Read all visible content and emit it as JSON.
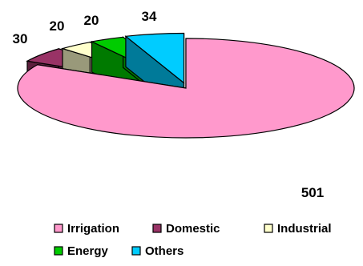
{
  "chart_data": {
    "type": "pie",
    "style": "3d-exploded",
    "legend_position": "bottom",
    "slices": [
      {
        "name": "Irrigation",
        "value": 501,
        "label": "501",
        "color": "#ff99cc",
        "side_color": "#996680"
      },
      {
        "name": "Domestic",
        "value": 30,
        "label": "30",
        "color": "#993366",
        "side_color": "#5c1f3d"
      },
      {
        "name": "Industrial",
        "value": 20,
        "label": "20",
        "color": "#ffffcc",
        "side_color": "#99997a"
      },
      {
        "name": "Energy",
        "value": 20,
        "label": "20",
        "color": "#00cc00",
        "side_color": "#007a00"
      },
      {
        "name": "Others",
        "value": 34,
        "label": "34",
        "color": "#00ccff",
        "side_color": "#007a99"
      }
    ]
  }
}
